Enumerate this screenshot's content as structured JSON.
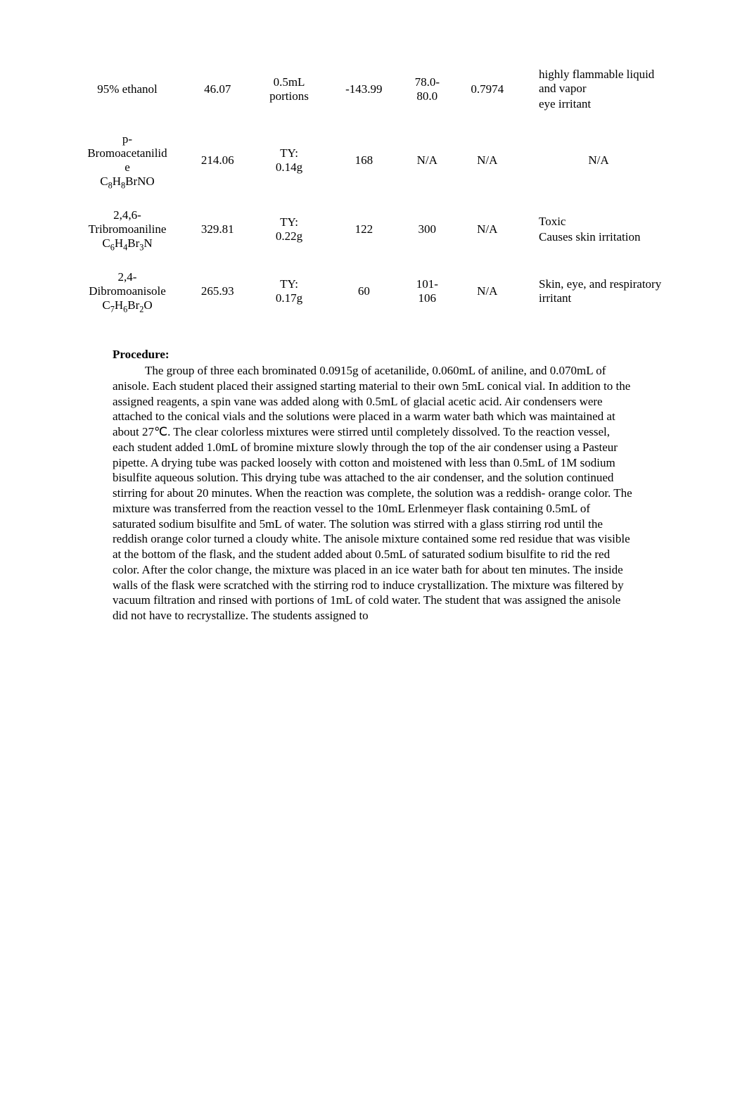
{
  "table": {
    "rows": [
      {
        "name_lines": [
          "95% ethanol"
        ],
        "formula": null,
        "mw": "46.07",
        "amt_l1": "0.5mL",
        "amt_l2": "portions",
        "c4": "-143.99",
        "c5_l1": "78.0-",
        "c5_l2": "80.0",
        "c6": "0.7974",
        "hazards": [
          "highly flammable liquid and vapor",
          "eye irritant"
        ],
        "hazard_center": false
      },
      {
        "name_lines": [
          "p-",
          "Bromoacetanilid",
          "e"
        ],
        "formula": "C8H8BrNO",
        "sub_map": [
          [
            "8",
            "8"
          ],
          []
        ],
        "mw": "214.06",
        "amt_l1": "TY:",
        "amt_l2": "0.14g",
        "c4": "168",
        "c5_l1": "N/A",
        "c5_l2": null,
        "c6": "N/A",
        "hazards": [],
        "hazard_plain": "N/A",
        "hazard_center": true
      },
      {
        "name_lines": [
          "2,4,6-",
          "Tribromoaniline"
        ],
        "formula": "C6H4Br3N",
        "mw": "329.81",
        "amt_l1": "TY:",
        "amt_l2": "0.22g",
        "c4": "122",
        "c5_l1": "300",
        "c5_l2": null,
        "c6": "N/A",
        "hazards": [
          "Toxic",
          "Causes skin irritation"
        ],
        "hazard_center": false
      },
      {
        "name_lines": [
          "2,4-",
          "Dibromoanisole"
        ],
        "formula": "C7H6Br2O",
        "mw": "265.93",
        "amt_l1": "TY:",
        "amt_l2": "0.17g",
        "c4": "60",
        "c5_l1": "101-",
        "c5_l2": "106",
        "c6": "N/A",
        "hazards": [
          "Skin, eye, and respiratory irritant"
        ],
        "hazard_center": false
      }
    ]
  },
  "procedure": {
    "heading": "Procedure:",
    "body": "The group of three each brominated 0.0915g of acetanilide, 0.060mL of aniline, and 0.070mL of anisole. Each student placed their assigned starting material to their own 5mL conical vial. In addition to the assigned reagents, a spin vane was added along with 0.5mL of glacial acetic acid. Air condensers were attached to the conical vials and the solutions were placed in a warm water bath which was maintained at about 27℃. The clear colorless mixtures were stirred until completely dissolved. To the reaction vessel, each student added 1.0mL of bromine mixture slowly through the top of the air condenser using a Pasteur pipette. A drying tube was packed loosely with cotton and moistened with less than 0.5mL of 1M sodium bisulfite aqueous solution. This drying tube was attached to the air condenser, and the solution continued stirring for about 20 minutes. When the reaction was complete, the solution was a reddish- orange color. The mixture was transferred from the reaction vessel to the 10mL Erlenmeyer flask containing 0.5mL of saturated sodium bisulfite and 5mL of water. The solution was stirred with a glass stirring rod until the reddish orange color turned a cloudy white. The anisole mixture contained some red residue that was visible at the bottom of the flask, and the student added about 0.5mL of saturated sodium bisulfite to rid the red color. After the color change, the mixture was placed in an ice water bath for about ten minutes. The inside walls of the flask were scratched with the stirring rod to induce crystallization. The mixture was filtered by vacuum filtration and rinsed with portions of 1mL of cold water. The student that was assigned the anisole did not have to recrystallize. The students assigned to"
  },
  "formulas_html": {
    "C8H8BrNO": "C<span class=\"sub\">8</span>H<span class=\"sub\">8</span>BrNO",
    "C6H4Br3N": "C<span class=\"sub\">6</span>H<span class=\"sub\">4</span>Br<span class=\"sub\">3</span>N",
    "C7H6Br2O": "C<span class=\"sub\">7</span>H<span class=\"sub\">6</span>Br<span class=\"sub\">2</span>O"
  },
  "bullet_glyph": ""
}
